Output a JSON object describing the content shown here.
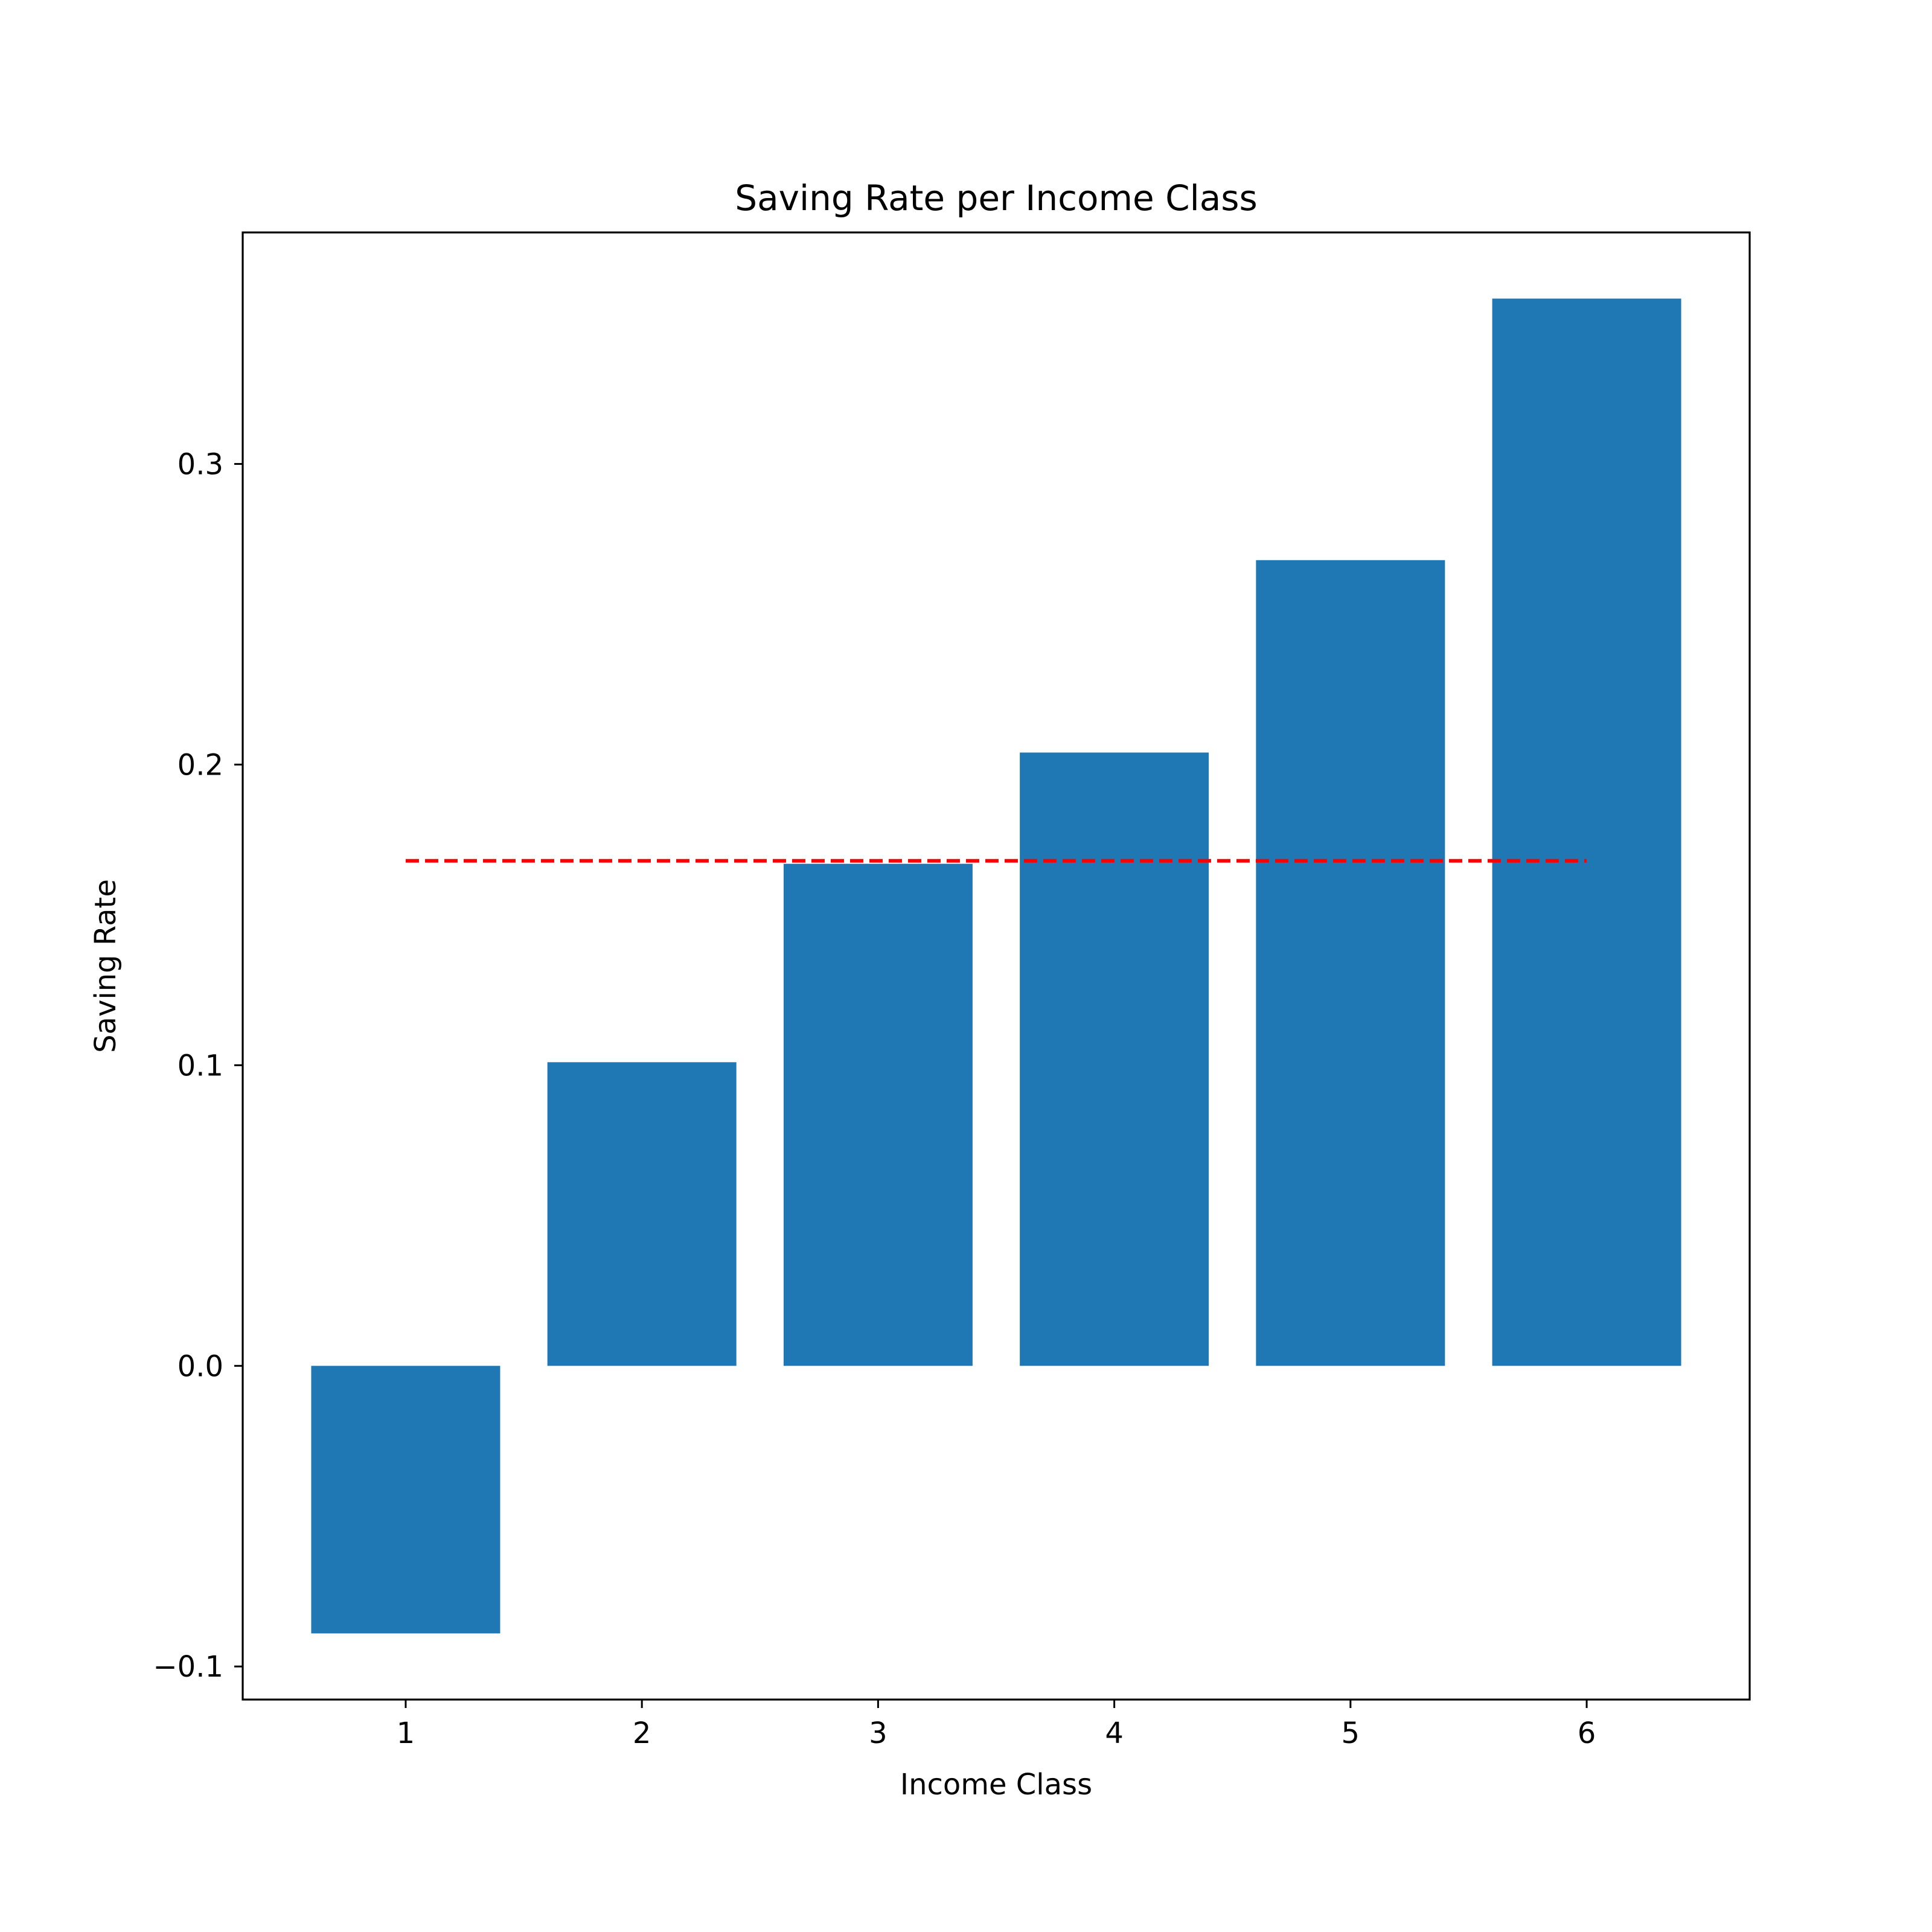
{
  "chart_data": {
    "type": "bar",
    "title": "Saving Rate per Income Class",
    "xlabel": "Income Class",
    "ylabel": "Saving Rate",
    "categories": [
      "1",
      "2",
      "3",
      "4",
      "5",
      "6"
    ],
    "x": [
      1,
      2,
      3,
      4,
      5,
      6
    ],
    "values": [
      -0.089,
      0.101,
      0.167,
      0.204,
      0.268,
      0.355
    ],
    "xlim": [
      0.31,
      6.69
    ],
    "ylim": [
      -0.111,
      0.377
    ],
    "xticks": [
      1,
      2,
      3,
      4,
      5,
      6
    ],
    "xtick_labels": [
      "1",
      "2",
      "3",
      "4",
      "5",
      "6"
    ],
    "yticks": [
      -0.1,
      0.0,
      0.1,
      0.2,
      0.3
    ],
    "ytick_labels": [
      "−0.1",
      "0.0",
      "0.1",
      "0.2",
      "0.3"
    ],
    "bar_width": 0.8,
    "grid": false,
    "reference_line": {
      "style": "dashed",
      "y": 0.168,
      "x_range": [
        1,
        6
      ]
    },
    "colors": {
      "bar": "#1f77b4",
      "reference_line": "#ff0000",
      "axes": "#000000",
      "background": "#ffffff"
    }
  }
}
